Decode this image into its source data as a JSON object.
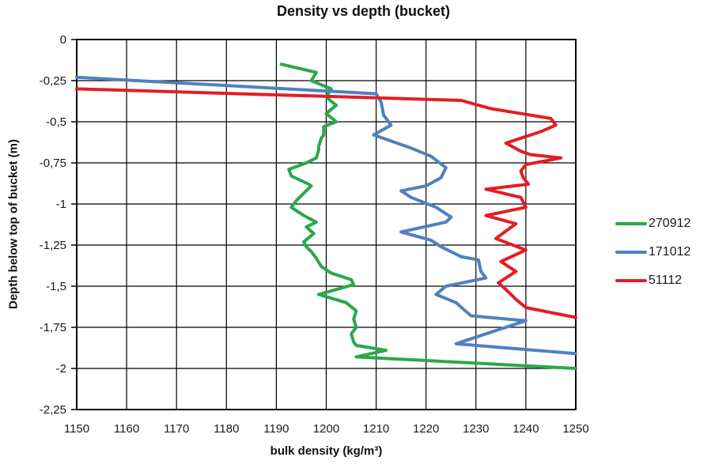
{
  "chart_data": {
    "type": "line",
    "title": "Density vs depth (bucket)",
    "xlabel": "bulk density (kg/m³)",
    "ylabel": "Depth below top of bucket (m)",
    "xlim": [
      1150,
      1250
    ],
    "ylim": [
      -2.25,
      0
    ],
    "x_ticks": [
      1150,
      1160,
      1170,
      1180,
      1190,
      1200,
      1210,
      1220,
      1230,
      1240,
      1250
    ],
    "x_tick_labels": [
      "1150",
      "1160",
      "1170",
      "1180",
      "1190",
      "1200",
      "1210",
      "1220",
      "1230",
      "1240",
      "1250"
    ],
    "y_ticks": [
      0,
      -0.25,
      -0.5,
      -0.75,
      -1,
      -1.25,
      -1.5,
      -1.75,
      -2,
      -2.25
    ],
    "y_tick_labels": [
      "0",
      "-0,25",
      "-0,5",
      "-0,75",
      "-1",
      "-1,25",
      "-1,5",
      "-1,75",
      "-2",
      "-2,25"
    ],
    "grid": true,
    "grid_color": "#000000",
    "legend_position": "right",
    "series": [
      {
        "name": "270912",
        "color": "#2AA84A",
        "points": [
          [
            1191,
            -0.15
          ],
          [
            1198,
            -0.2
          ],
          [
            1197,
            -0.25
          ],
          [
            1201,
            -0.3
          ],
          [
            1200,
            -0.35
          ],
          [
            1202,
            -0.4
          ],
          [
            1200,
            -0.45
          ],
          [
            1202,
            -0.5
          ],
          [
            1199.5,
            -0.53
          ],
          [
            1199.5,
            -0.58
          ],
          [
            1199,
            -0.6
          ],
          [
            1198.5,
            -0.65
          ],
          [
            1198.5,
            -0.67
          ],
          [
            1198,
            -0.72
          ],
          [
            1196,
            -0.75
          ],
          [
            1192.5,
            -0.79
          ],
          [
            1193,
            -0.83
          ],
          [
            1196.5,
            -0.88
          ],
          [
            1197,
            -0.89
          ],
          [
            1194,
            -0.98
          ],
          [
            1193,
            -1.02
          ],
          [
            1195.5,
            -1.07
          ],
          [
            1198,
            -1.11
          ],
          [
            1196,
            -1.14
          ],
          [
            1197.5,
            -1.18
          ],
          [
            1195.5,
            -1.23
          ],
          [
            1196,
            -1.26
          ],
          [
            1197,
            -1.29
          ],
          [
            1198,
            -1.33
          ],
          [
            1199,
            -1.38
          ],
          [
            1201,
            -1.42
          ],
          [
            1205,
            -1.46
          ],
          [
            1205.5,
            -1.49
          ],
          [
            1198.5,
            -1.55
          ],
          [
            1204,
            -1.6
          ],
          [
            1206,
            -1.65
          ],
          [
            1205.5,
            -1.7
          ],
          [
            1206,
            -1.75
          ],
          [
            1205,
            -1.79
          ],
          [
            1205.5,
            -1.84
          ],
          [
            1206,
            -1.86
          ],
          [
            1212,
            -1.89
          ],
          [
            1206,
            -1.93
          ],
          [
            1250,
            -2.0
          ]
        ]
      },
      {
        "name": "171012",
        "color": "#4F81BD",
        "points": [
          [
            1150,
            -0.23
          ],
          [
            1210,
            -0.33
          ],
          [
            1211,
            -0.38
          ],
          [
            1211.5,
            -0.46
          ],
          [
            1213,
            -0.52
          ],
          [
            1209.5,
            -0.58
          ],
          [
            1217,
            -0.66
          ],
          [
            1221,
            -0.71
          ],
          [
            1224,
            -0.78
          ],
          [
            1223,
            -0.84
          ],
          [
            1220,
            -0.89
          ],
          [
            1215,
            -0.92
          ],
          [
            1217,
            -0.96
          ],
          [
            1222,
            -1.02
          ],
          [
            1225,
            -1.08
          ],
          [
            1224,
            -1.11
          ],
          [
            1215,
            -1.17
          ],
          [
            1221,
            -1.22
          ],
          [
            1223,
            -1.26
          ],
          [
            1227,
            -1.32
          ],
          [
            1230.5,
            -1.34
          ],
          [
            1231,
            -1.41
          ],
          [
            1232,
            -1.45
          ],
          [
            1224,
            -1.5
          ],
          [
            1222,
            -1.55
          ],
          [
            1226,
            -1.6
          ],
          [
            1227.5,
            -1.64
          ],
          [
            1229,
            -1.68
          ],
          [
            1240,
            -1.71
          ],
          [
            1233,
            -1.78
          ],
          [
            1226,
            -1.85
          ],
          [
            1250,
            -1.91
          ]
        ]
      },
      {
        "name": "51112",
        "color": "#E31E24",
        "points": [
          [
            1150,
            -0.3
          ],
          [
            1227,
            -0.37
          ],
          [
            1233,
            -0.42
          ],
          [
            1245,
            -0.48
          ],
          [
            1246,
            -0.52
          ],
          [
            1243,
            -0.56
          ],
          [
            1239,
            -0.6
          ],
          [
            1236,
            -0.63
          ],
          [
            1239,
            -0.68
          ],
          [
            1241,
            -0.7
          ],
          [
            1247,
            -0.72
          ],
          [
            1240,
            -0.76
          ],
          [
            1239,
            -0.8
          ],
          [
            1239.5,
            -0.84
          ],
          [
            1240.5,
            -0.88
          ],
          [
            1232,
            -0.91
          ],
          [
            1239,
            -0.96
          ],
          [
            1240,
            -1.02
          ],
          [
            1232,
            -1.07
          ],
          [
            1238,
            -1.12
          ],
          [
            1234,
            -1.21
          ],
          [
            1240,
            -1.28
          ],
          [
            1235,
            -1.35
          ],
          [
            1238,
            -1.41
          ],
          [
            1234.5,
            -1.48
          ],
          [
            1236,
            -1.52
          ],
          [
            1238,
            -1.58
          ],
          [
            1240,
            -1.63
          ],
          [
            1245,
            -1.66
          ],
          [
            1250,
            -1.69
          ]
        ]
      }
    ]
  }
}
